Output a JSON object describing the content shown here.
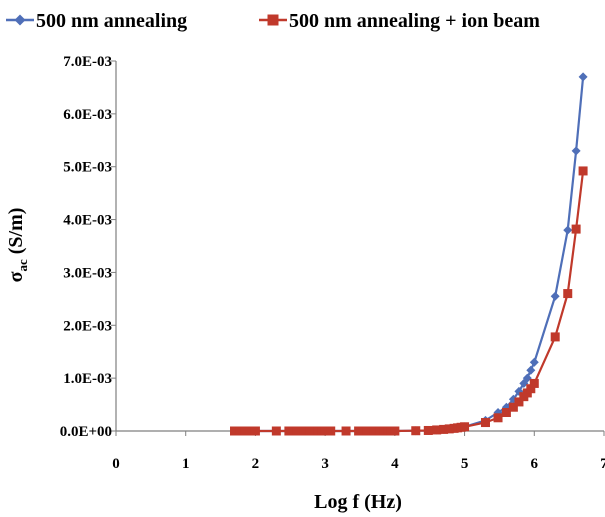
{
  "chart_data": {
    "type": "line",
    "xlabel": "Log f (Hz)",
    "ylabel": {
      "main": "σ",
      "sub": "ac",
      "rest": " (S/m)"
    },
    "xlim": [
      0,
      7
    ],
    "ylim": [
      0,
      0.007
    ],
    "x_ticks": [
      "0",
      "1",
      "2",
      "3",
      "4",
      "5",
      "6",
      "7"
    ],
    "y_ticks": [
      "0.0E+00",
      "1.0E-03",
      "2.0E-03",
      "3.0E-03",
      "4.0E-03",
      "5.0E-03",
      "6.0E-03",
      "7.0E-03"
    ],
    "legend_position": "top",
    "grid": false,
    "series": [
      {
        "name": "500 nm annealing",
        "color": "#4f6fb8",
        "marker": "diamond",
        "points": [
          [
            1.7,
            0.0
          ],
          [
            1.78,
            0.0
          ],
          [
            1.85,
            0.0
          ],
          [
            1.92,
            0.0
          ],
          [
            2.0,
            0.0
          ],
          [
            2.3,
            0.0
          ],
          [
            2.48,
            0.0
          ],
          [
            2.6,
            0.0
          ],
          [
            2.7,
            0.0
          ],
          [
            2.78,
            0.0
          ],
          [
            2.85,
            0.0
          ],
          [
            2.9,
            0.0
          ],
          [
            2.95,
            0.0
          ],
          [
            3.0,
            0.0
          ],
          [
            3.08,
            0.0
          ],
          [
            3.3,
            0.0
          ],
          [
            3.48,
            0.0
          ],
          [
            3.6,
            0.0
          ],
          [
            3.7,
            0.0
          ],
          [
            3.78,
            0.0
          ],
          [
            3.85,
            0.0
          ],
          [
            3.9,
            0.0
          ],
          [
            3.95,
            0.0
          ],
          [
            4.0,
            0.0
          ],
          [
            4.3,
            5e-06
          ],
          [
            4.48,
            1e-05
          ],
          [
            4.6,
            2e-05
          ],
          [
            4.7,
            3e-05
          ],
          [
            4.78,
            4e-05
          ],
          [
            4.85,
            5e-05
          ],
          [
            4.9,
            6e-05
          ],
          [
            4.95,
            7e-05
          ],
          [
            5.0,
            8e-05
          ],
          [
            5.3,
            0.0002
          ],
          [
            5.48,
            0.00035
          ],
          [
            5.6,
            0.00045
          ],
          [
            5.7,
            0.0006
          ],
          [
            5.78,
            0.00075
          ],
          [
            5.85,
            0.0009
          ],
          [
            5.9,
            0.001
          ],
          [
            5.95,
            0.00115
          ],
          [
            6.0,
            0.0013
          ],
          [
            6.3,
            0.00255
          ],
          [
            6.48,
            0.0038
          ],
          [
            6.6,
            0.0053
          ],
          [
            6.7,
            0.0067
          ]
        ]
      },
      {
        "name": "500 nm annealing + ion beam",
        "color": "#c0392b",
        "marker": "square",
        "points": [
          [
            1.7,
            0.0
          ],
          [
            1.78,
            0.0
          ],
          [
            1.85,
            0.0
          ],
          [
            1.92,
            0.0
          ],
          [
            2.0,
            0.0
          ],
          [
            2.3,
            0.0
          ],
          [
            2.48,
            0.0
          ],
          [
            2.6,
            0.0
          ],
          [
            2.7,
            0.0
          ],
          [
            2.78,
            0.0
          ],
          [
            2.85,
            0.0
          ],
          [
            2.9,
            0.0
          ],
          [
            2.95,
            0.0
          ],
          [
            3.0,
            0.0
          ],
          [
            3.08,
            0.0
          ],
          [
            3.3,
            0.0
          ],
          [
            3.48,
            0.0
          ],
          [
            3.6,
            0.0
          ],
          [
            3.7,
            0.0
          ],
          [
            3.78,
            0.0
          ],
          [
            3.85,
            0.0
          ],
          [
            3.9,
            0.0
          ],
          [
            3.95,
            0.0
          ],
          [
            4.0,
            0.0
          ],
          [
            4.3,
            5e-06
          ],
          [
            4.48,
            1e-05
          ],
          [
            4.6,
            2e-05
          ],
          [
            4.7,
            3e-05
          ],
          [
            4.78,
            4e-05
          ],
          [
            4.85,
            5e-05
          ],
          [
            4.9,
            6e-05
          ],
          [
            4.95,
            7e-05
          ],
          [
            5.0,
            8e-05
          ],
          [
            5.3,
            0.00016
          ],
          [
            5.48,
            0.00025
          ],
          [
            5.6,
            0.00035
          ],
          [
            5.7,
            0.00045
          ],
          [
            5.78,
            0.00055
          ],
          [
            5.85,
            0.00065
          ],
          [
            5.9,
            0.00072
          ],
          [
            5.95,
            0.0008
          ],
          [
            6.0,
            0.0009
          ],
          [
            6.3,
            0.00178
          ],
          [
            6.48,
            0.0026
          ],
          [
            6.6,
            0.00382
          ],
          [
            6.7,
            0.00492
          ]
        ]
      }
    ]
  }
}
